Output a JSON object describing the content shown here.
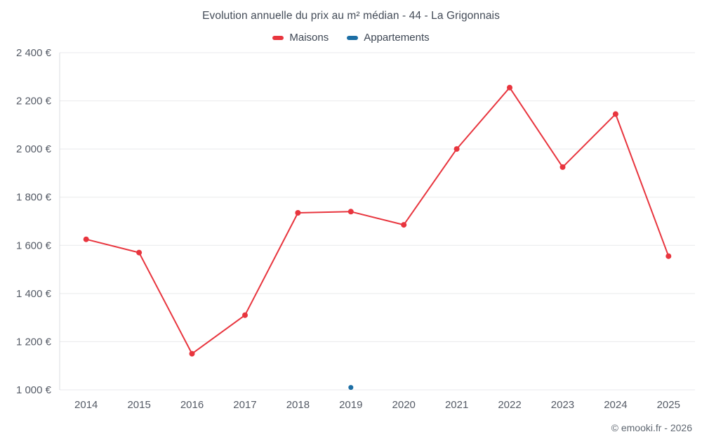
{
  "header": {
    "title": "Evolution annuelle du prix au m² médian - 44 - La Grigonnais"
  },
  "legend": [
    {
      "label": "Maisons",
      "color": "#e8353e"
    },
    {
      "label": "Appartements",
      "color": "#1c6ea4"
    }
  ],
  "footer": {
    "copyright": "© emooki.fr - 2026"
  },
  "chart_data": {
    "type": "line",
    "title": "Evolution annuelle du prix au m² médian - 44 - La Grigonnais",
    "categories": [
      "2014",
      "2015",
      "2016",
      "2017",
      "2018",
      "2019",
      "2020",
      "2021",
      "2022",
      "2023",
      "2024",
      "2025"
    ],
    "series": [
      {
        "name": "Maisons",
        "color": "#e8353e",
        "values": [
          1625,
          1570,
          1150,
          1310,
          1735,
          1740,
          1685,
          2000,
          2255,
          1925,
          2145,
          1555
        ]
      },
      {
        "name": "Appartements",
        "color": "#1c6ea4",
        "values": [
          null,
          null,
          null,
          null,
          null,
          1010,
          null,
          null,
          null,
          null,
          null,
          null
        ]
      }
    ],
    "xlabel": "",
    "ylabel": "",
    "ylim": [
      1000,
      2400
    ],
    "ytick_step": 200,
    "ytick_suffix": " €",
    "grid": "horizontal",
    "legend_position": "top"
  }
}
